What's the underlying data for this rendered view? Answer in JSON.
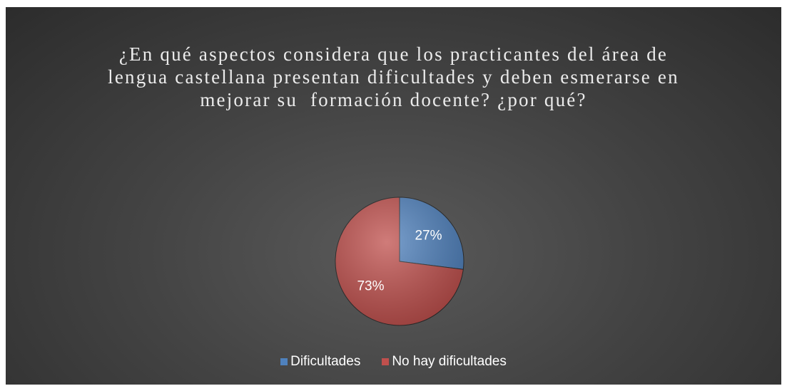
{
  "chart_data": {
    "type": "pie",
    "title": "¿En qué aspectos considera que los practicantes del área de lengua castellana presentan dificultades y deben esmerarse en  mejorar su  formación docente? ¿por qué?",
    "categories": [
      "Dificultades",
      "No hay dificultades"
    ],
    "values": [
      27,
      73
    ],
    "value_labels": [
      "27%",
      "73%"
    ],
    "colors": [
      "#4f81bd",
      "#c0504d"
    ],
    "legend": "bottom"
  }
}
